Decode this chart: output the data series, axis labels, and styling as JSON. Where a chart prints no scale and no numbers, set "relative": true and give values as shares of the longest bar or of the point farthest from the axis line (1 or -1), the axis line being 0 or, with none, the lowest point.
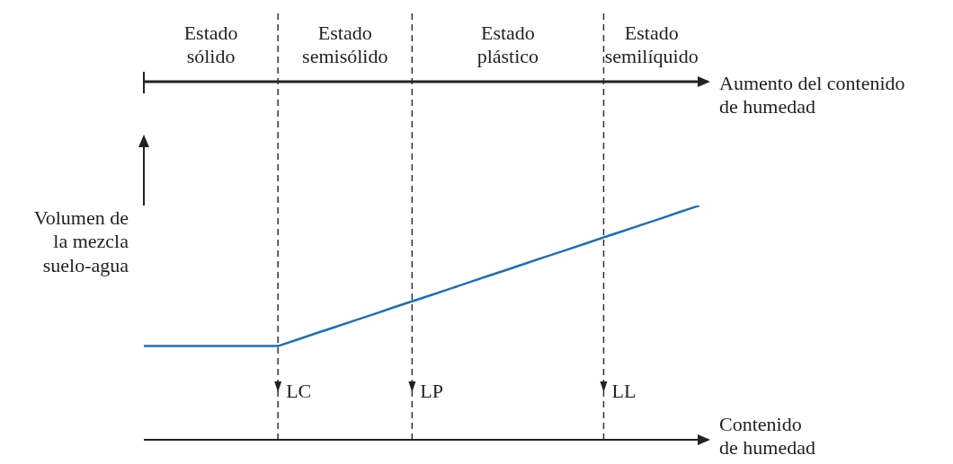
{
  "chart_data": {
    "type": "line",
    "relative": true,
    "xlabel": "Contenido\nde humedad",
    "ylabel": "Volumen de\nla mezcla\nsuelo-agua",
    "categories": [
      null,
      null,
      null,
      null,
      null,
      null,
      null,
      null,
      null,
      null,
      null,
      null,
      null,
      null,
      null,
      null,
      null,
      null,
      null,
      null,
      null,
      null,
      null,
      null,
      null,
      null,
      null,
      null,
      null,
      null
    ],
    "series": [
      {
        "color": "#1f6fb0",
        "values": [
          0.4,
          0.4,
          0.4,
          0.4,
          0.4,
          0.4,
          0.4,
          0.4,
          0.427,
          0.455,
          0.482,
          0.509,
          0.536,
          0.564,
          0.591,
          0.618,
          0.645,
          0.673,
          0.7,
          0.727,
          0.755,
          0.782,
          0.809,
          0.836,
          0.864,
          0.891,
          0.918,
          0.945,
          0.973,
          1
        ]
      }
    ],
    "grid": "x",
    "marker": "none",
    "line_style": "solid",
    "annotations": [
      "Estado\nsólido",
      "Estado\nsemisólido",
      "Estado\nplástico",
      "Estado\nsemilíquido",
      "Aumento del contenido\nde humedad",
      "LC",
      "LP",
      "LL"
    ]
  }
}
